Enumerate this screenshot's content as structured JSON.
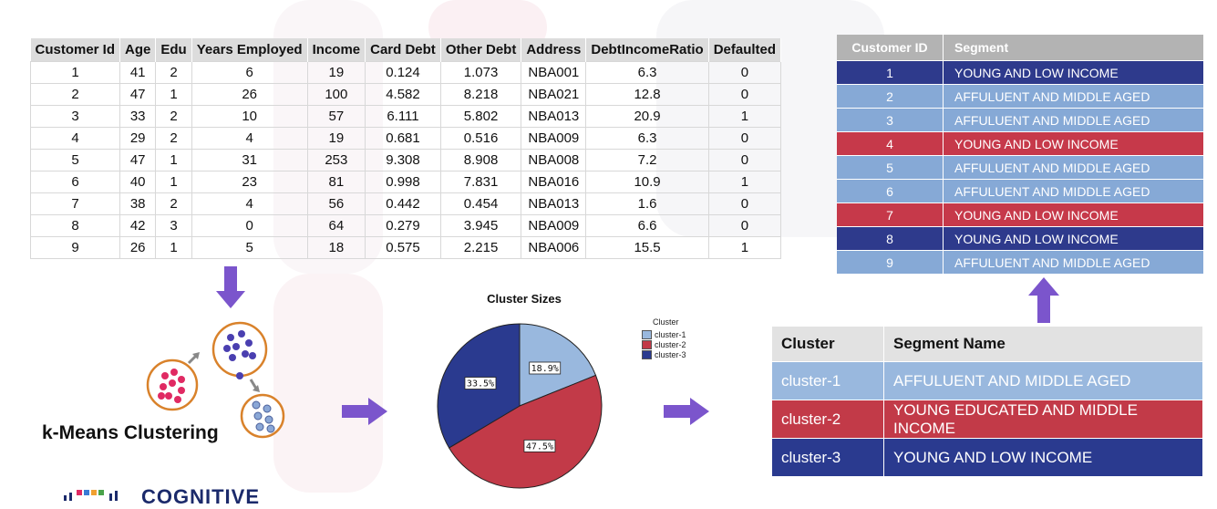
{
  "colors": {
    "young_low": "#2e3a8c",
    "affluent": "#86a9d6",
    "young_edu": "#c6394a",
    "cluster1": "#99b8de",
    "cluster2": "#c23a48",
    "cluster3": "#2a3a8f"
  },
  "customer_table": {
    "headers": [
      "Customer Id",
      "Age",
      "Edu",
      "Years Employed",
      "Income",
      "Card Debt",
      "Other Debt",
      "Address",
      "DebtIncomeRatio",
      "Defaulted"
    ],
    "rows": [
      [
        "1",
        "41",
        "2",
        "6",
        "19",
        "0.124",
        "1.073",
        "NBA001",
        "6.3",
        "0"
      ],
      [
        "2",
        "47",
        "1",
        "26",
        "100",
        "4.582",
        "8.218",
        "NBA021",
        "12.8",
        "0"
      ],
      [
        "3",
        "33",
        "2",
        "10",
        "57",
        "6.111",
        "5.802",
        "NBA013",
        "20.9",
        "1"
      ],
      [
        "4",
        "29",
        "2",
        "4",
        "19",
        "0.681",
        "0.516",
        "NBA009",
        "6.3",
        "0"
      ],
      [
        "5",
        "47",
        "1",
        "31",
        "253",
        "9.308",
        "8.908",
        "NBA008",
        "7.2",
        "0"
      ],
      [
        "6",
        "40",
        "1",
        "23",
        "81",
        "0.998",
        "7.831",
        "NBA016",
        "10.9",
        "1"
      ],
      [
        "7",
        "38",
        "2",
        "4",
        "56",
        "0.442",
        "0.454",
        "NBA013",
        "1.6",
        "0"
      ],
      [
        "8",
        "42",
        "3",
        "0",
        "64",
        "0.279",
        "3.945",
        "NBA009",
        "6.6",
        "0"
      ],
      [
        "9",
        "26",
        "1",
        "5",
        "18",
        "0.575",
        "2.215",
        "NBA006",
        "15.5",
        "1"
      ]
    ]
  },
  "segment_table": {
    "headers": [
      "Customer ID",
      "Segment"
    ],
    "rows": [
      {
        "id": "1",
        "segment": "YOUNG AND LOW INCOME",
        "color": "#2e3a8c"
      },
      {
        "id": "2",
        "segment": "AFFULUENT AND MIDDLE AGED",
        "color": "#86a9d6"
      },
      {
        "id": "3",
        "segment": "AFFULUENT AND MIDDLE AGED",
        "color": "#86a9d6"
      },
      {
        "id": "4",
        "segment": "YOUNG AND LOW INCOME",
        "color": "#c6394a"
      },
      {
        "id": "5",
        "segment": "AFFULUENT AND MIDDLE AGED",
        "color": "#86a9d6"
      },
      {
        "id": "6",
        "segment": "AFFULUENT AND MIDDLE AGED",
        "color": "#86a9d6"
      },
      {
        "id": "7",
        "segment": "YOUNG AND LOW INCOME",
        "color": "#c6394a"
      },
      {
        "id": "8",
        "segment": "YOUNG AND LOW INCOME",
        "color": "#2e3a8c"
      },
      {
        "id": "9",
        "segment": "AFFULUENT AND MIDDLE AGED",
        "color": "#86a9d6"
      }
    ]
  },
  "cluster_table": {
    "headers": [
      "Cluster",
      "Segment Name"
    ],
    "rows": [
      {
        "cluster": "cluster-1",
        "name": "AFFULUENT AND MIDDLE AGED",
        "color": "#99b8de"
      },
      {
        "cluster": "cluster-2",
        "name": "YOUNG EDUCATED AND MIDDLE INCOME",
        "color": "#c23a48"
      },
      {
        "cluster": "cluster-3",
        "name": "YOUNG AND LOW INCOME",
        "color": "#2a3a8f"
      }
    ]
  },
  "kmeans_label": "k-Means Clustering",
  "logo_text": "COGNITIVE",
  "chart_data": {
    "type": "pie",
    "title": "Cluster Sizes",
    "legend_title": "Cluster",
    "legend_position": "right",
    "slices": [
      {
        "name": "cluster-1",
        "value": 18.9,
        "label": "18.9%",
        "color": "#99b8de"
      },
      {
        "name": "cluster-2",
        "value": 47.5,
        "label": "47.5%",
        "color": "#c23a48"
      },
      {
        "name": "cluster-3",
        "value": 33.5,
        "label": "33.5%",
        "color": "#2a3a8f"
      }
    ]
  }
}
